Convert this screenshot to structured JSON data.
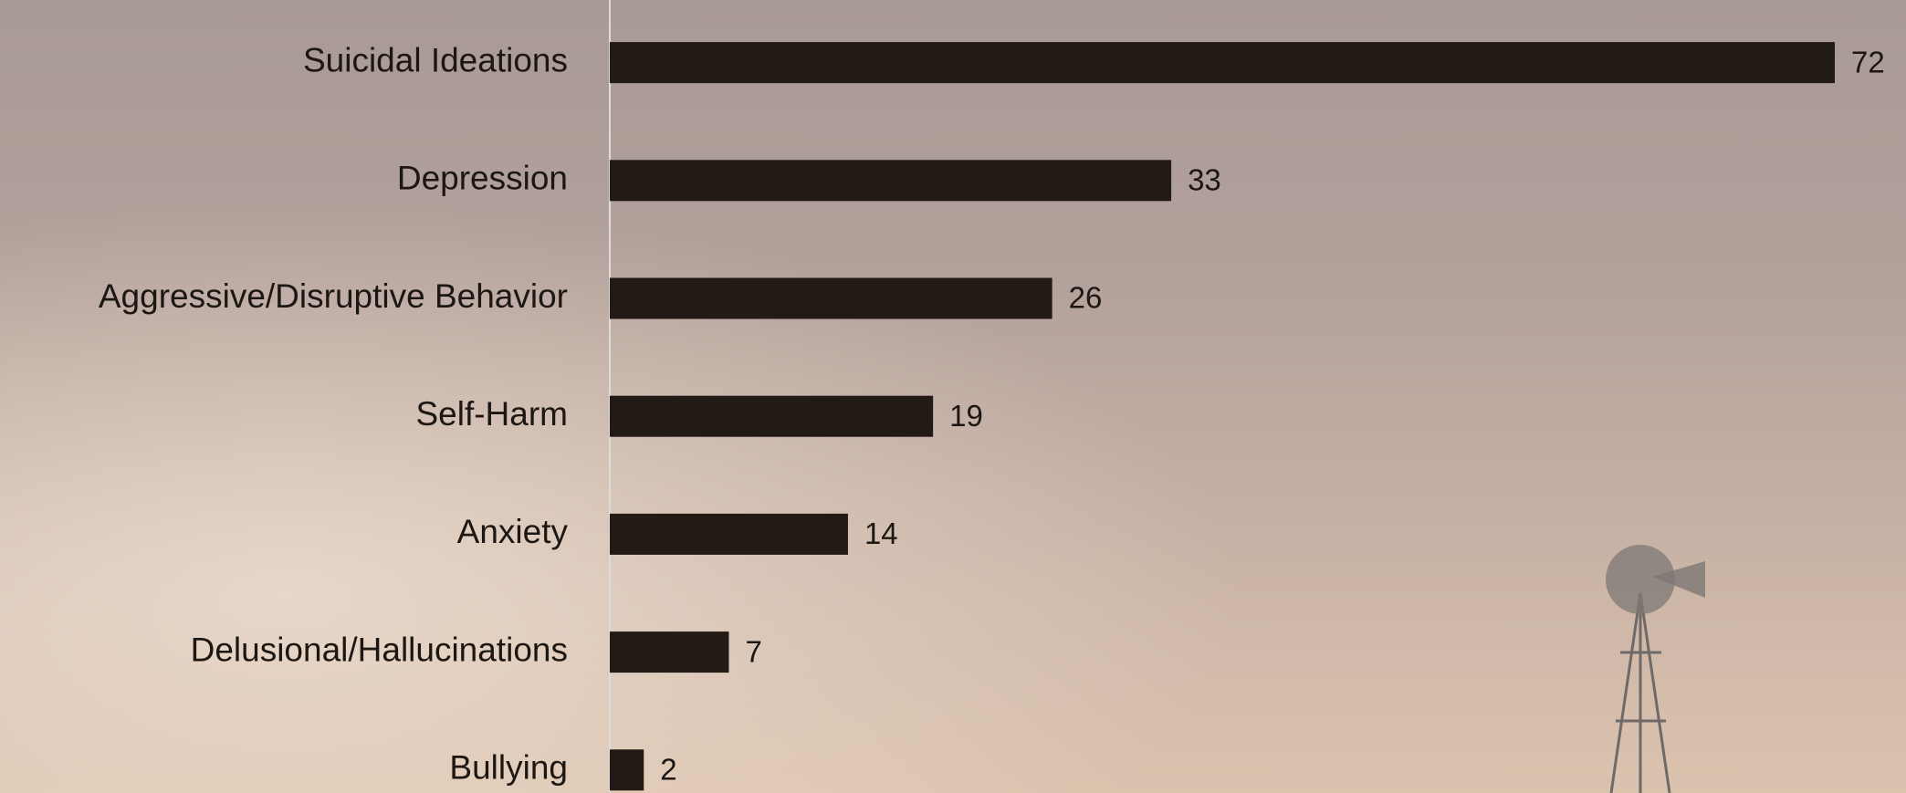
{
  "chart_data": {
    "type": "bar",
    "orientation": "horizontal",
    "categories": [
      "Suicidal Ideations",
      "Depression",
      "Aggressive/Disruptive Behavior",
      "Self-Harm",
      "Anxiety",
      "Delusional/Hallucinations",
      "Bullying"
    ],
    "values": [
      72,
      33,
      26,
      19,
      14,
      7,
      2
    ],
    "color": "#221a14",
    "xlim": [
      0,
      72
    ]
  }
}
